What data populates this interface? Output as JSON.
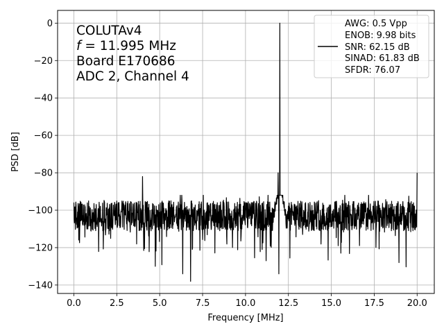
{
  "chart_data": {
    "type": "line",
    "xlabel": "Frequency [MHz]",
    "ylabel": "PSD [dB]",
    "xlim": [
      -0.95,
      21.0
    ],
    "ylim": [
      -144.5,
      6.8
    ],
    "xticks": [
      0.0,
      2.5,
      5.0,
      7.5,
      10.0,
      12.5,
      15.0,
      17.5,
      20.0
    ],
    "xtick_labels": [
      "0.0",
      "2.5",
      "5.0",
      "7.5",
      "10.0",
      "12.5",
      "15.0",
      "17.5",
      "20.0"
    ],
    "yticks": [
      0,
      -20,
      -40,
      -60,
      -80,
      -100,
      -120,
      -140
    ],
    "ytick_labels": [
      "0",
      "−20",
      "−40",
      "−60",
      "−80",
      "−100",
      "−120",
      "−140"
    ],
    "grid": true,
    "legend_position": "top-right",
    "annotation": {
      "line1": "COLUTAv4",
      "line2_var": "f",
      "line2_rest": " = 11.995 MHz",
      "line3": "Board E170686",
      "line4": "ADC 2, Channel 4"
    },
    "legend_lines": [
      "AWG: 0.5 Vpp",
      "ENOB: 9.98 bits",
      "SNR: 62.15 dB",
      "SINAD: 61.83 dB",
      "SFDR: 76.07"
    ],
    "series": [
      {
        "color": "#000000",
        "noise_floor_db": -103,
        "noise_range_db": [
          -138,
          -92
        ],
        "fundamental": {
          "x": 11.995,
          "y": 0
        },
        "spurs": [
          {
            "x": 4.0,
            "y": -82
          },
          {
            "x": 11.9,
            "y": -80
          },
          {
            "x": 20.0,
            "y": -80
          }
        ],
        "deep_dips": [
          {
            "x": 4.75,
            "y": -130
          },
          {
            "x": 6.35,
            "y": -134
          },
          {
            "x": 6.8,
            "y": -138
          },
          {
            "x": 11.95,
            "y": -134
          },
          {
            "x": 11.2,
            "y": -127
          },
          {
            "x": 18.95,
            "y": -128
          }
        ]
      }
    ]
  }
}
